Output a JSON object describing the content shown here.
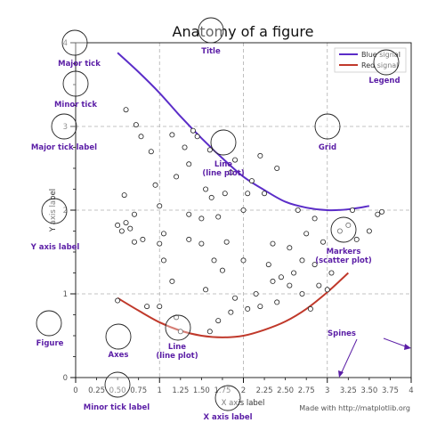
{
  "chart_data": {
    "type": "line",
    "title": "Anatomy of a figure",
    "xlabel": "X axis label",
    "ylabel": "Y axis label",
    "xlim": [
      0,
      4
    ],
    "ylim": [
      0,
      4
    ],
    "grid": true,
    "legend_position": "top-right",
    "x_major_ticks": [
      {
        "value": 0,
        "label": "0"
      },
      {
        "value": 1,
        "label": "1"
      },
      {
        "value": 2,
        "label": "2"
      },
      {
        "value": 3,
        "label": "3"
      },
      {
        "value": 4,
        "label": "4"
      }
    ],
    "x_minor_ticks": [
      {
        "value": 0.25,
        "label": "0.25"
      },
      {
        "value": 0.5,
        "label": "0.50"
      },
      {
        "value": 0.75,
        "label": "0.75"
      },
      {
        "value": 1.25,
        "label": "1.25"
      },
      {
        "value": 1.5,
        "label": "1.50"
      },
      {
        "value": 1.75,
        "label": "1.75"
      },
      {
        "value": 2.25,
        "label": "2.25"
      },
      {
        "value": 2.5,
        "label": "2.50"
      },
      {
        "value": 2.75,
        "label": "2.75"
      },
      {
        "value": 3.25,
        "label": "3.25"
      },
      {
        "value": 3.5,
        "label": "3.50"
      },
      {
        "value": 3.75,
        "label": "3.75"
      }
    ],
    "y_major_ticks": [
      {
        "value": 0,
        "label": "0"
      },
      {
        "value": 1,
        "label": "1"
      },
      {
        "value": 2,
        "label": "2"
      },
      {
        "value": 3,
        "label": "3"
      },
      {
        "value": 4,
        "label": "4"
      }
    ],
    "series": [
      {
        "name": "Blue signal",
        "color": "#5b2dc8",
        "x": [
          0.5,
          0.75,
          1.0,
          1.25,
          1.5,
          1.75,
          2.0,
          2.25,
          2.5,
          2.75,
          3.0,
          3.25,
          3.5
        ],
        "y": [
          3.88,
          3.65,
          3.4,
          3.12,
          2.86,
          2.62,
          2.4,
          2.24,
          2.1,
          2.03,
          2.0,
          2.01,
          2.05
        ]
      },
      {
        "name": "Red signal",
        "color": "#c0392b",
        "x": [
          0.5,
          0.75,
          1.0,
          1.25,
          1.5,
          1.75,
          2.0,
          2.25,
          2.5,
          2.75,
          3.0,
          3.25
        ],
        "y": [
          0.95,
          0.8,
          0.66,
          0.56,
          0.5,
          0.48,
          0.5,
          0.57,
          0.67,
          0.82,
          1.02,
          1.25
        ]
      }
    ],
    "scatter": {
      "name": "Markers",
      "points": [
        [
          0.5,
          0.92
        ],
        [
          0.85,
          0.85
        ],
        [
          1.0,
          0.85
        ],
        [
          1.25,
          0.55
        ],
        [
          1.2,
          0.72
        ],
        [
          1.15,
          1.15
        ],
        [
          1.05,
          1.4
        ],
        [
          1.0,
          1.6
        ],
        [
          1.05,
          1.72
        ],
        [
          0.8,
          1.65
        ],
        [
          0.7,
          1.62
        ],
        [
          0.65,
          1.78
        ],
        [
          0.55,
          1.75
        ],
        [
          0.6,
          1.85
        ],
        [
          0.5,
          1.82
        ],
        [
          0.7,
          1.95
        ],
        [
          0.58,
          2.18
        ],
        [
          0.95,
          2.3
        ],
        [
          1.0,
          2.05
        ],
        [
          1.2,
          2.4
        ],
        [
          1.35,
          2.55
        ],
        [
          1.3,
          2.75
        ],
        [
          1.15,
          2.9
        ],
        [
          1.4,
          2.95
        ],
        [
          1.45,
          2.88
        ],
        [
          0.9,
          2.7
        ],
        [
          0.78,
          2.88
        ],
        [
          0.72,
          3.02
        ],
        [
          0.6,
          3.2
        ],
        [
          1.55,
          2.25
        ],
        [
          1.35,
          1.95
        ],
        [
          1.5,
          1.9
        ],
        [
          1.62,
          2.15
        ],
        [
          1.7,
          1.92
        ],
        [
          1.78,
          2.2
        ],
        [
          1.85,
          2.45
        ],
        [
          2.0,
          2.0
        ],
        [
          2.05,
          2.2
        ],
        [
          2.1,
          2.35
        ],
        [
          1.9,
          2.6
        ],
        [
          1.6,
          2.72
        ],
        [
          1.65,
          1.4
        ],
        [
          1.55,
          1.05
        ],
        [
          1.35,
          1.65
        ],
        [
          1.5,
          1.6
        ],
        [
          1.8,
          1.62
        ],
        [
          2.0,
          1.4
        ],
        [
          1.9,
          0.95
        ],
        [
          1.85,
          0.78
        ],
        [
          1.7,
          0.68
        ],
        [
          1.6,
          0.55
        ],
        [
          2.05,
          0.82
        ],
        [
          2.2,
          0.85
        ],
        [
          2.4,
          0.9
        ],
        [
          2.45,
          1.2
        ],
        [
          2.6,
          1.25
        ],
        [
          2.7,
          1.4
        ],
        [
          2.85,
          1.35
        ],
        [
          2.55,
          1.1
        ],
        [
          2.9,
          1.1
        ],
        [
          3.0,
          1.05
        ],
        [
          3.05,
          1.25
        ],
        [
          2.35,
          1.6
        ],
        [
          2.55,
          1.55
        ],
        [
          2.75,
          1.72
        ],
        [
          2.95,
          1.62
        ],
        [
          3.15,
          1.75
        ],
        [
          3.25,
          1.82
        ],
        [
          3.35,
          1.65
        ],
        [
          3.5,
          1.75
        ],
        [
          3.3,
          2.0
        ],
        [
          3.6,
          1.95
        ],
        [
          3.65,
          1.98
        ],
        [
          2.65,
          2.0
        ],
        [
          2.85,
          1.9
        ],
        [
          2.2,
          2.65
        ],
        [
          2.4,
          2.5
        ],
        [
          2.25,
          2.2
        ],
        [
          2.35,
          1.15
        ],
        [
          2.15,
          1.0
        ],
        [
          2.8,
          0.82
        ],
        [
          2.7,
          1.0
        ],
        [
          2.3,
          1.35
        ],
        [
          1.75,
          1.28
        ]
      ]
    },
    "annotations": [
      {
        "label": "Title",
        "value": "Title"
      },
      {
        "label": "Major tick",
        "value": "Major tick"
      },
      {
        "label": "Minor tick",
        "value": "Minor tick"
      },
      {
        "label": "Major tick label",
        "value": "Major tick label"
      },
      {
        "label": "Grid",
        "value": "Grid"
      },
      {
        "label": "Legend",
        "value": "Legend"
      },
      {
        "label": "Y axis label",
        "value": "Y axis label"
      },
      {
        "label": "Line (line plot)",
        "value": "Line\n(line plot)"
      },
      {
        "label": "Markers (scatter plot)",
        "value": "Markers\n(scatter plot)"
      },
      {
        "label": "Figure",
        "value": "Figure"
      },
      {
        "label": "Axes",
        "value": "Axes"
      },
      {
        "label": "Line (line plot) lower",
        "value": "Line\n(line plot)"
      },
      {
        "label": "Spines",
        "value": "Spines"
      },
      {
        "label": "Minor tick label",
        "value": "Minor tick label"
      },
      {
        "label": "X axis label",
        "value": "X axis label"
      }
    ],
    "footer": "Made with http://matplotlib.org"
  }
}
